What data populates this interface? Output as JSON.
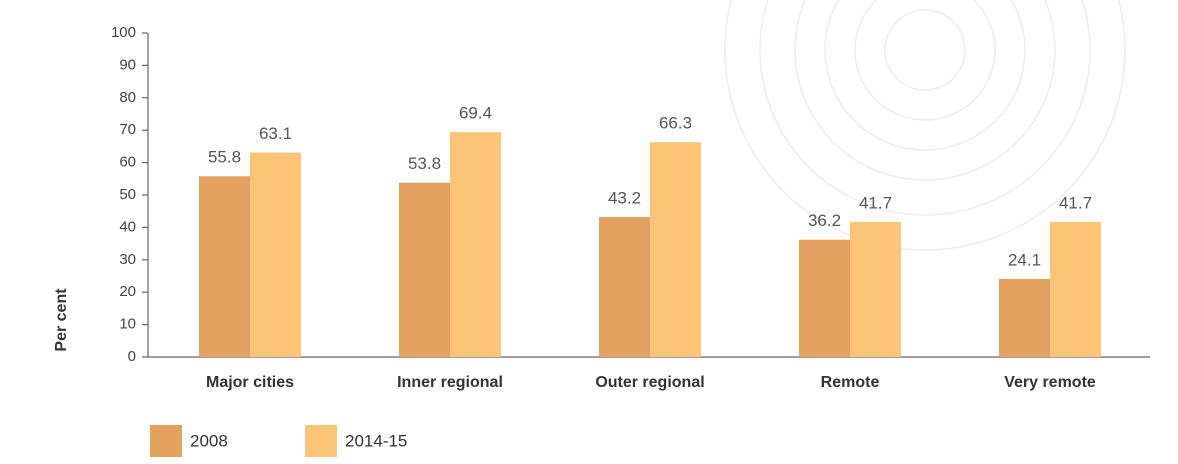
{
  "chart_data": {
    "type": "bar",
    "y_label": "Per cent",
    "categories": [
      "Major cities",
      "Inner regional",
      "Outer regional",
      "Remote",
      "Very remote"
    ],
    "series": [
      {
        "name": "2008",
        "color": "#e3a262",
        "values": [
          55.8,
          53.8,
          43.2,
          36.2,
          24.1
        ]
      },
      {
        "name": "2014-15",
        "color": "#fcc476",
        "values": [
          63.1,
          69.4,
          66.3,
          41.7,
          41.7
        ]
      }
    ],
    "ylim": [
      0,
      100
    ],
    "yticks": [
      0,
      10,
      20,
      30,
      40,
      50,
      60,
      70,
      80,
      90,
      100
    ],
    "legend": "bottom-left"
  }
}
